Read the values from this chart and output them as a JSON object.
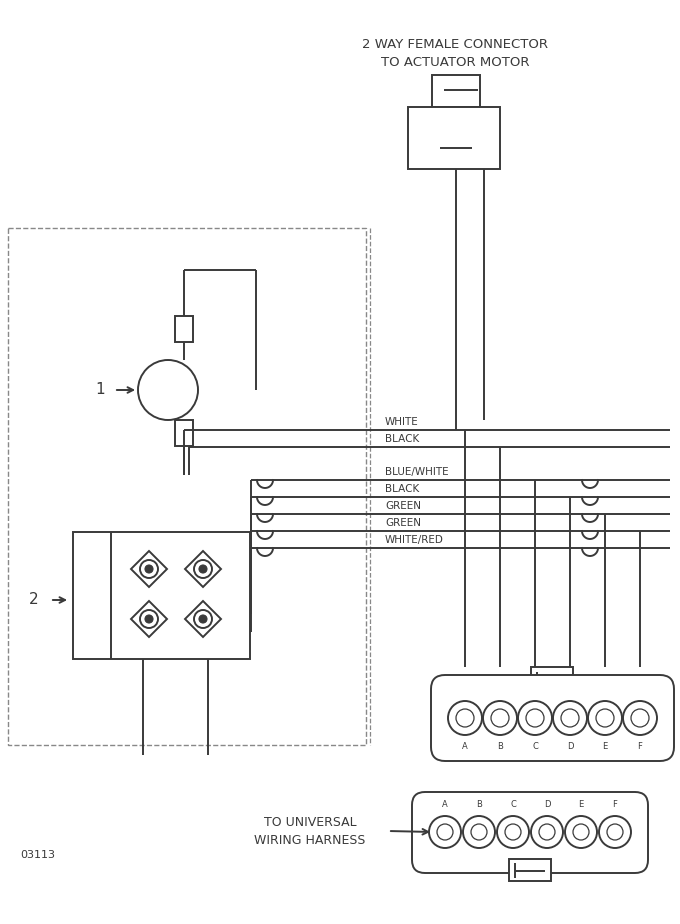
{
  "bg_color": "#ffffff",
  "line_color": "#3a3a3a",
  "title_top": "2 WAY FEMALE CONNECTOR",
  "title_top2": "TO ACTUATOR MOTOR",
  "label_bottom1": "TO UNIVERSAL",
  "label_bottom2": "WIRING HARNESS",
  "wire_labels": [
    "WHITE",
    "BLACK",
    "BLUE/WHITE",
    "BLACK",
    "GREEN",
    "GREEN",
    "WHITE/RED"
  ],
  "part_label_1": "1",
  "part_label_2": "2",
  "code": "03113",
  "connector_pins": [
    "A",
    "B",
    "C",
    "D",
    "E",
    "F"
  ],
  "dashed_color": "#888888"
}
